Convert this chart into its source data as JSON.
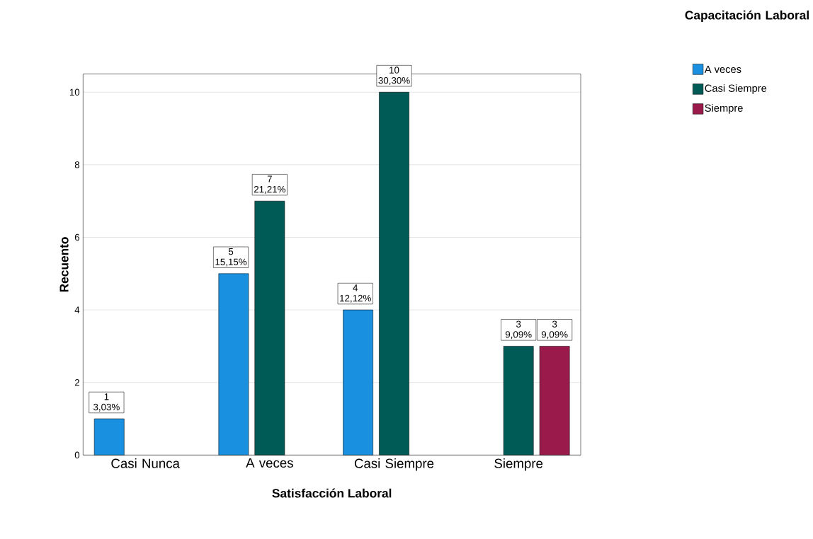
{
  "chart_data": {
    "type": "bar",
    "xlabel": "Satisfacción Laboral",
    "ylabel": "Recuento",
    "legend_title": "Capacitación Laboral",
    "categories": [
      "Casi Nunca",
      "A veces",
      "Casi Siempre",
      "Siempre"
    ],
    "series": [
      {
        "name": "A veces",
        "color": "#1a90e0",
        "values": [
          1,
          5,
          4,
          null
        ],
        "value_labels": [
          "1 3,03%",
          "5 15,15%",
          "4 12,12%",
          null
        ]
      },
      {
        "name": "Casi Siempre",
        "color": "#005a55",
        "values": [
          null,
          7,
          10,
          3
        ],
        "value_labels": [
          null,
          "7 21,21%",
          "10 30,30%",
          "3 9,09%"
        ]
      },
      {
        "name": "Siempre",
        "color": "#9b1a4c",
        "values": [
          null,
          null,
          null,
          3
        ],
        "value_labels": [
          null,
          null,
          null,
          "3 9,09%"
        ]
      }
    ],
    "ylim": [
      0,
      10.5
    ],
    "yticks": [
      0,
      2,
      4,
      6,
      8,
      10
    ],
    "grid": "y",
    "legend": "top right"
  }
}
